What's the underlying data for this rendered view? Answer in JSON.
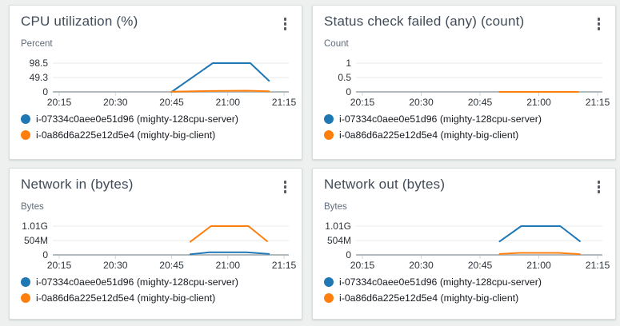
{
  "page": {
    "background_color": "#eef0f0",
    "card_background": "#ffffff"
  },
  "icons": {
    "kebab_menu": "vertical three-dot widget menu"
  },
  "palette": {
    "series_blue": "#1f77b4",
    "series_orange": "#ff7f0e",
    "grid_line": "#e8eaea",
    "zero_line": "#b3babd",
    "axis_text": "#2e3338",
    "title_text": "#404b57"
  },
  "chart_data": [
    {
      "type": "line",
      "title": "CPU utilization (%)",
      "ylabel": "Percent",
      "grid": true,
      "legend_position": "bottom",
      "x_unit": "minutes after 20:15",
      "x_domain": [
        0,
        60
      ],
      "x_tick_labels": [
        "20:15",
        "20:30",
        "20:45",
        "21:00",
        "21:15"
      ],
      "y_tick_labels": [
        "98.5",
        "49.3",
        "0"
      ],
      "y_tick_values": [
        98.5,
        49.3,
        0
      ],
      "series": [
        {
          "name": "i-07334c0aee0e51d96 (mighty-128cpu-server)",
          "color": "#1f77b4",
          "points": [
            [
              30,
              0
            ],
            [
              41,
              98.5
            ],
            [
              51,
              98.5
            ],
            [
              56,
              38
            ]
          ]
        },
        {
          "name": "i-0a86d6a225e12d5e4 (mighty-big-client)",
          "color": "#ff7f0e",
          "points": [
            [
              30,
              0.5
            ],
            [
              40,
              3
            ],
            [
              50,
              4
            ],
            [
              56,
              2
            ]
          ]
        }
      ]
    },
    {
      "type": "line",
      "title": "Status check failed (any) (count)",
      "ylabel": "Count",
      "grid": true,
      "legend_position": "bottom",
      "x_unit": "minutes after 20:15",
      "x_domain": [
        0,
        60
      ],
      "x_tick_labels": [
        "20:15",
        "20:30",
        "20:45",
        "21:00",
        "21:15"
      ],
      "y_tick_labels": [
        "1",
        "0.5",
        "0"
      ],
      "y_tick_values": [
        1,
        0.5,
        0
      ],
      "series": [
        {
          "name": "i-07334c0aee0e51d96 (mighty-128cpu-server)",
          "color": "#1f77b4",
          "points": [
            [
              35,
              0
            ],
            [
              55,
              0
            ]
          ]
        },
        {
          "name": "i-0a86d6a225e12d5e4 (mighty-big-client)",
          "color": "#ff7f0e",
          "points": [
            [
              35,
              0
            ],
            [
              55,
              0
            ]
          ]
        }
      ]
    },
    {
      "type": "line",
      "title": "Network in (bytes)",
      "ylabel": "Bytes",
      "grid": true,
      "legend_position": "bottom",
      "x_unit": "minutes after 20:15",
      "x_domain": [
        0,
        60
      ],
      "x_tick_labels": [
        "20:15",
        "20:30",
        "20:45",
        "21:00",
        "21:15"
      ],
      "y_tick_labels": [
        "1.01G",
        "504M",
        "0"
      ],
      "y_tick_values": [
        1010000000,
        504000000,
        0
      ],
      "series": [
        {
          "name": "i-07334c0aee0e51d96 (mighty-128cpu-server)",
          "color": "#1f77b4",
          "points": [
            [
              35,
              20000000
            ],
            [
              40,
              90000000
            ],
            [
              50,
              90000000
            ],
            [
              56,
              30000000
            ]
          ]
        },
        {
          "name": "i-0a86d6a225e12d5e4 (mighty-big-client)",
          "color": "#ff7f0e",
          "points": [
            [
              35,
              460000000
            ],
            [
              40.5,
              1010000000
            ],
            [
              50.5,
              1010000000
            ],
            [
              55.5,
              480000000
            ]
          ]
        }
      ]
    },
    {
      "type": "line",
      "title": "Network out (bytes)",
      "ylabel": "Bytes",
      "grid": true,
      "legend_position": "bottom",
      "x_unit": "minutes after 20:15",
      "x_domain": [
        0,
        60
      ],
      "x_tick_labels": [
        "20:15",
        "20:30",
        "20:45",
        "21:00",
        "21:15"
      ],
      "y_tick_labels": [
        "1.01G",
        "504M",
        "0"
      ],
      "y_tick_values": [
        1010000000,
        504000000,
        0
      ],
      "series": [
        {
          "name": "i-07334c0aee0e51d96 (mighty-128cpu-server)",
          "color": "#1f77b4",
          "points": [
            [
              35,
              470000000
            ],
            [
              40.5,
              1010000000
            ],
            [
              50.5,
              1010000000
            ],
            [
              55.5,
              480000000
            ]
          ]
        },
        {
          "name": "i-0a86d6a225e12d5e4 (mighty-big-client)",
          "color": "#ff7f0e",
          "points": [
            [
              35,
              30000000
            ],
            [
              40,
              70000000
            ],
            [
              50,
              70000000
            ],
            [
              55.5,
              25000000
            ]
          ]
        }
      ]
    }
  ]
}
